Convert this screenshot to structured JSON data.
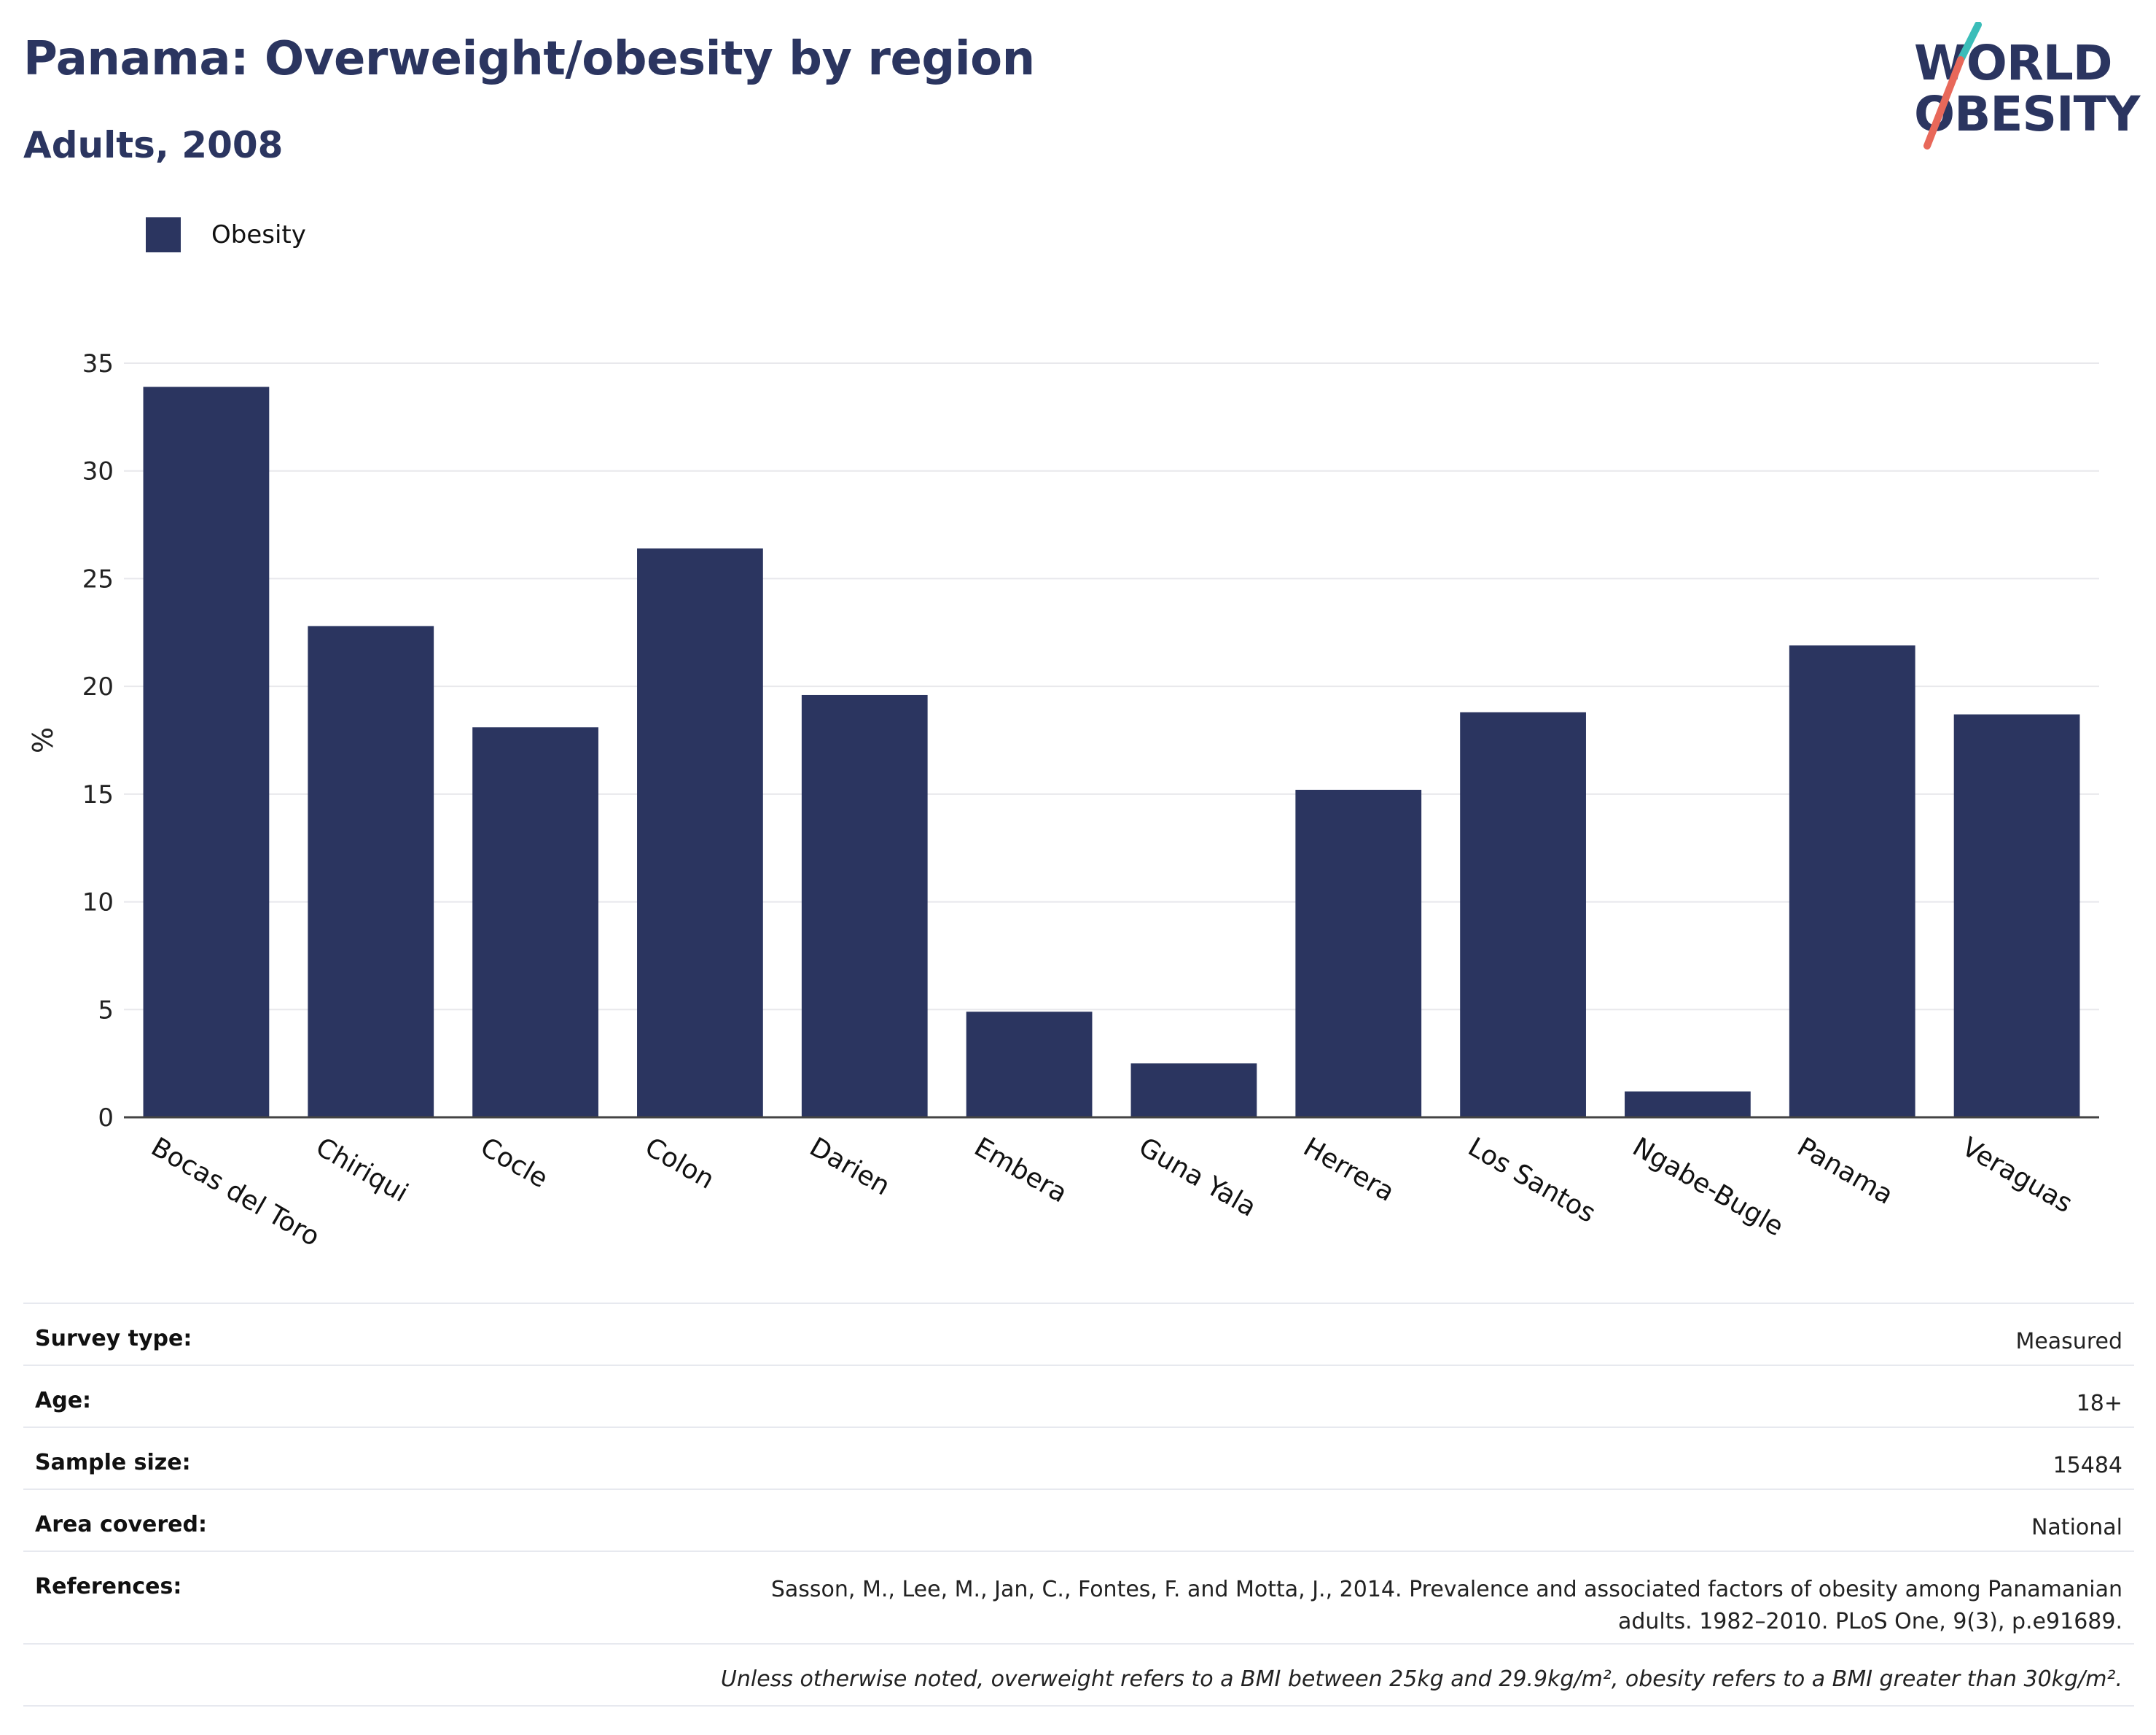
{
  "header": {
    "title": "Panama: Overweight/obesity by region",
    "subtitle": "Adults, 2008"
  },
  "logo": {
    "line1": "WORLD",
    "line2": "OBESITY"
  },
  "colors": {
    "bar": "#2b3560",
    "accent_teal": "#3bbdb9",
    "accent_coral": "#e8685a"
  },
  "chart_data": {
    "type": "bar",
    "title": "Panama: Overweight/obesity by region",
    "subtitle": "Adults, 2008",
    "xlabel": "",
    "ylabel": "%",
    "ylim": [
      0,
      35
    ],
    "yticks": [
      0,
      5,
      10,
      15,
      20,
      25,
      30,
      35
    ],
    "grid": true,
    "legend_position": "top-left",
    "categories": [
      "Bocas del Toro",
      "Chiriqui",
      "Cocle",
      "Colon",
      "Darien",
      "Embera",
      "Guna Yala",
      "Herrera",
      "Los Santos",
      "Ngabe-Bugle",
      "Panama",
      "Veraguas"
    ],
    "series": [
      {
        "name": "Obesity",
        "values": [
          33.9,
          22.8,
          18.1,
          26.4,
          19.6,
          4.9,
          2.5,
          15.2,
          18.8,
          1.2,
          21.9,
          18.7
        ]
      }
    ]
  },
  "info": {
    "rows": [
      {
        "key": "Survey type:",
        "value": "Measured"
      },
      {
        "key": "Age:",
        "value": "18+"
      },
      {
        "key": "Sample size:",
        "value": "15484"
      },
      {
        "key": "Area covered:",
        "value": "National"
      }
    ],
    "references_key": "References:",
    "references_value": "Sasson, M., Lee, M., Jan, C., Fontes, F. and Motta, J., 2014. Prevalence and associated factors of obesity among Panamanian adults. 1982–2010. PLoS One, 9(3), p.e91689.",
    "note": "Unless otherwise noted, overweight refers to a BMI between 25kg and 29.9kg/m², obesity refers to a BMI greater than 30kg/m²."
  }
}
